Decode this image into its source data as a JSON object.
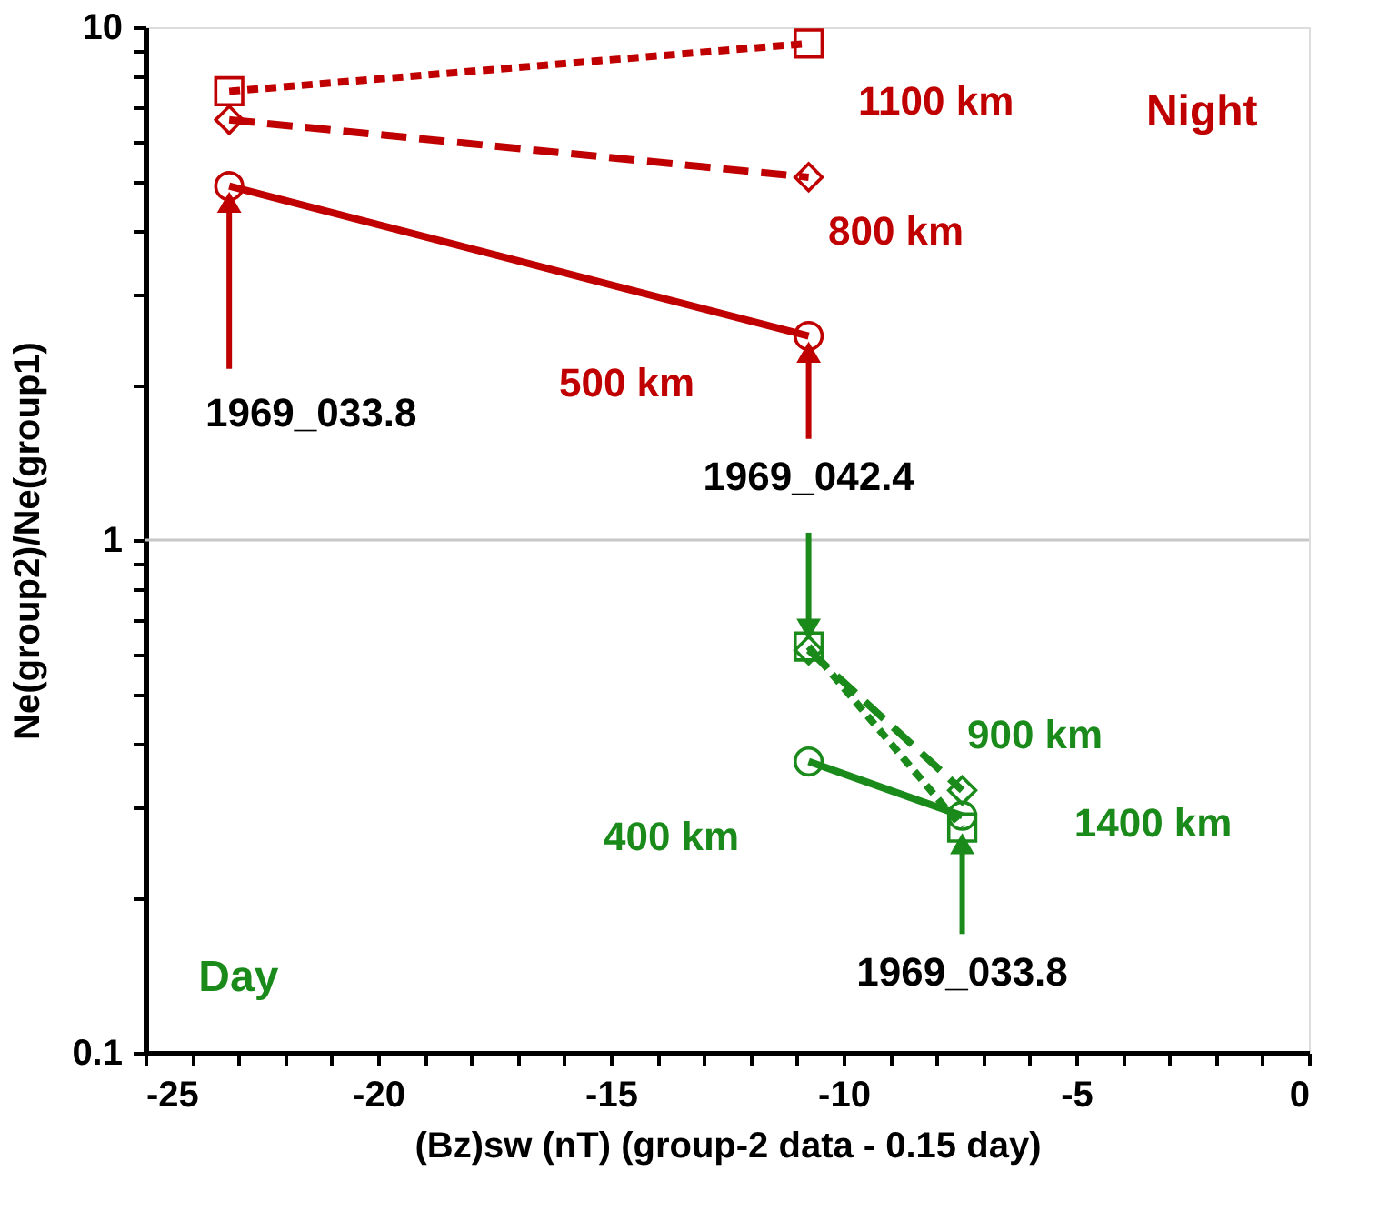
{
  "chart_data": {
    "type": "line",
    "xlabel": "(Bz)sw (nT)   (group-2 data - 0.15 day)",
    "ylabel": "Ne(group2)/Ne(group1)",
    "log": "y",
    "grid": false,
    "xlim": [
      -25,
      0
    ],
    "xticks": [
      -25,
      {
        "value": -24,
        "label": null
      },
      {
        "value": -23,
        "label": null
      },
      {
        "value": -22,
        "label": null
      },
      {
        "value": -21,
        "label": null
      },
      -20,
      {
        "value": -19,
        "label": null
      },
      {
        "value": -18,
        "label": null
      },
      {
        "value": -17,
        "label": null
      },
      {
        "value": -16,
        "label": null
      },
      -15,
      {
        "value": -14,
        "label": null
      },
      {
        "value": -13,
        "label": null
      },
      {
        "value": -12,
        "label": null
      },
      {
        "value": -11,
        "label": null
      },
      -10,
      {
        "value": -9,
        "label": null
      },
      {
        "value": -8,
        "label": null
      },
      {
        "value": -7,
        "label": null
      },
      {
        "value": -6,
        "label": null
      },
      -5,
      {
        "value": -4,
        "label": null
      },
      {
        "value": -3,
        "label": null
      },
      {
        "value": -2,
        "label": null
      },
      {
        "value": -1,
        "label": null
      },
      0
    ],
    "ylim": [
      0.1,
      10
    ],
    "yticks": [
      0.1,
      {
        "value": 0.2,
        "label": null
      },
      {
        "value": 0.3,
        "label": null
      },
      {
        "value": 0.4,
        "label": null
      },
      {
        "value": 0.5,
        "label": null
      },
      {
        "value": 0.6,
        "label": null
      },
      {
        "value": 0.7,
        "label": null
      },
      {
        "value": 0.8,
        "label": null
      },
      {
        "value": 0.9,
        "label": null
      },
      1,
      {
        "value": 2,
        "label": null
      },
      {
        "value": 3,
        "label": null
      },
      {
        "value": 4,
        "label": null
      },
      {
        "value": 5,
        "label": null
      },
      {
        "value": 6,
        "label": null
      },
      {
        "value": 7,
        "label": null
      },
      {
        "value": 8,
        "label": null
      },
      {
        "value": 9,
        "label": null
      },
      10
    ],
    "ref_lines": [
      {
        "axis": "y",
        "value": 1,
        "color": "#c8c8c8"
      }
    ],
    "series": [
      {
        "name": "1100 km",
        "color": "#c00000",
        "x": [
          -23.2,
          -10.75
        ],
        "values": [
          7.5,
          9.3
        ],
        "line_style": "dotted",
        "marker": "square"
      },
      {
        "name": "800 km",
        "color": "#c00000",
        "x": [
          -23.2,
          -10.75
        ],
        "values": [
          6.6,
          5.1
        ],
        "line_style": "dashed",
        "marker": "diamond"
      },
      {
        "name": "500 km",
        "color": "#c00000",
        "x": [
          -23.2,
          -10.75
        ],
        "values": [
          4.9,
          2.5
        ],
        "line_style": "solid",
        "marker": "circle"
      },
      {
        "name": "400 km",
        "color": "#1a8a1a",
        "x": [
          -10.75,
          -7.45
        ],
        "values": [
          0.37,
          0.29
        ],
        "line_style": "solid",
        "marker": "circle"
      },
      {
        "name": "900 km",
        "color": "#1a8a1a",
        "x": [
          -10.75,
          -7.45
        ],
        "values": [
          0.61,
          0.325
        ],
        "line_style": "dashed",
        "marker": "diamond"
      },
      {
        "name": "1400 km",
        "color": "#1a8a1a",
        "x": [
          -10.75,
          -7.45
        ],
        "values": [
          0.62,
          0.275
        ],
        "line_style": "dotted",
        "marker": "square"
      }
    ],
    "annotations": [
      {
        "text": "1969_033.8",
        "x": -23.2,
        "y": 4.9
      },
      {
        "text": "1969_042.4",
        "x": -10.75,
        "y": 2.5
      },
      {
        "text": "1969_033.8",
        "x": -7.45,
        "y": 0.275
      },
      "Night",
      "Day"
    ]
  }
}
